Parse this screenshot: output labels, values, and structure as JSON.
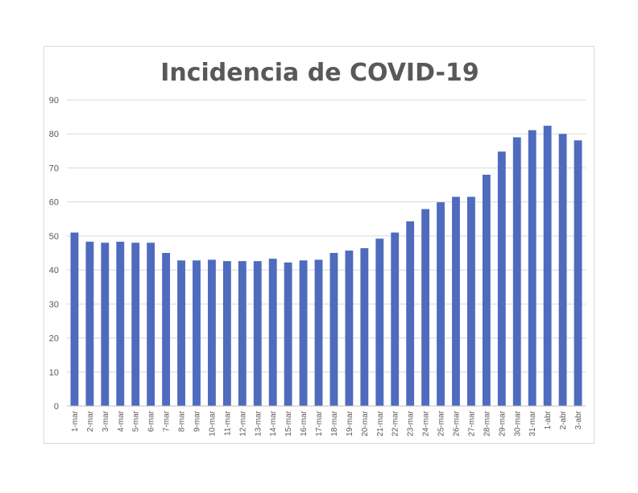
{
  "chart_data": {
    "type": "bar",
    "title": "Incidencia de COVID-19",
    "xlabel": "",
    "ylabel": "",
    "ylim": [
      0,
      90
    ],
    "yticks": [
      0,
      10,
      20,
      30,
      40,
      50,
      60,
      70,
      80,
      90
    ],
    "grid": true,
    "legend": "none",
    "bar_color": "#4e6bbd",
    "categories": [
      "1-mar",
      "2-mar",
      "3-mar",
      "4-mar",
      "5-mar",
      "6-mar",
      "7-mar",
      "8-mar",
      "9-mar",
      "10-mar",
      "11-mar",
      "12-mar",
      "13-mar",
      "14-mar",
      "15-mar",
      "16-mar",
      "17-mar",
      "18-mar",
      "19-mar",
      "20-mar",
      "21-mar",
      "22-mar",
      "23-mar",
      "24-mar",
      "25-mar",
      "26-mar",
      "27-mar",
      "28-mar",
      "29-mar",
      "30-mar",
      "31-mar",
      "1-abr",
      "2-abr",
      "3-abr"
    ],
    "values": [
      51,
      48.3,
      48,
      48.3,
      48,
      48,
      45,
      42.8,
      42.8,
      43,
      42.6,
      42.6,
      42.6,
      43.3,
      42.2,
      42.8,
      43,
      45,
      45.7,
      46.4,
      49.2,
      51,
      54.3,
      57.9,
      59.9,
      61.5,
      61.5,
      68,
      74.8,
      79,
      81.1,
      82.4,
      80,
      78.1
    ]
  }
}
